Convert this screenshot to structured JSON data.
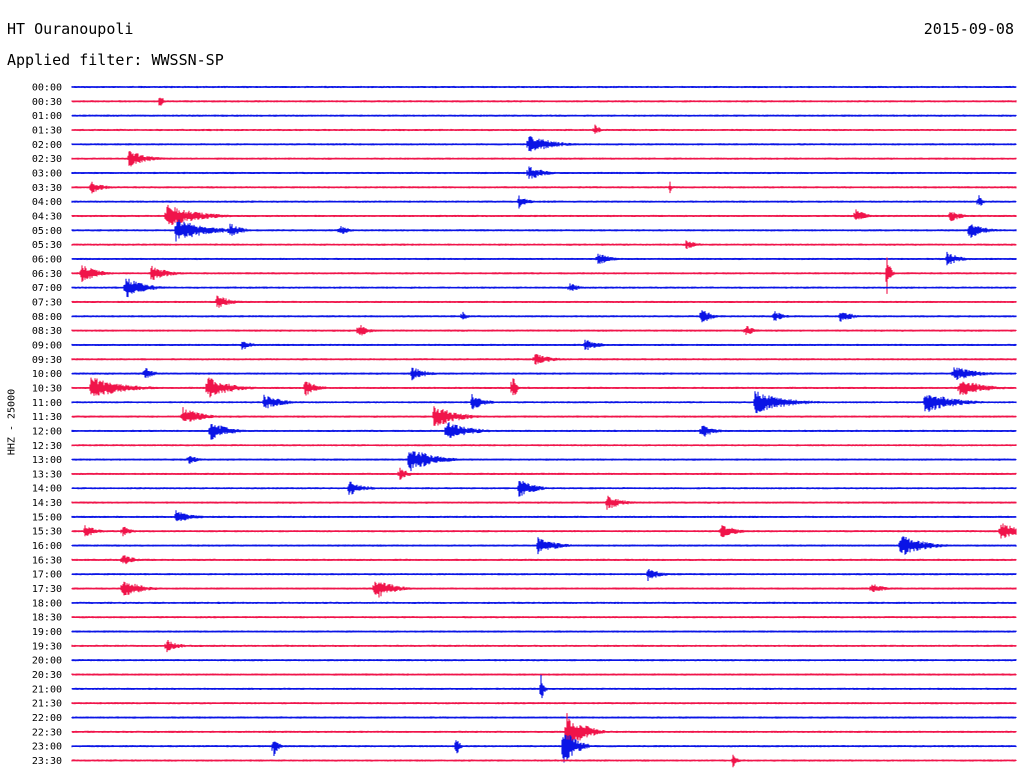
{
  "header": {
    "station": "HT Ouranoupoli",
    "date": "2015-09-08",
    "filter": "Applied filter: WWSSN-SP"
  },
  "colors": {
    "blue": "#0a14e6",
    "red": "#f0144a",
    "label": "#000000"
  },
  "chart_data": {
    "type": "line",
    "title": "HT Ouranoupoli",
    "subtitle": "Applied filter: WWSSN-SP",
    "ylabel": "HHZ - 25000",
    "y_categories": [
      "00:00",
      "00:30",
      "01:00",
      "01:30",
      "02:00",
      "02:30",
      "03:00",
      "03:30",
      "04:00",
      "04:30",
      "05:00",
      "05:30",
      "06:00",
      "06:30",
      "07:00",
      "07:30",
      "08:00",
      "08:30",
      "09:00",
      "09:30",
      "10:00",
      "10:30",
      "11:00",
      "11:30",
      "12:00",
      "12:30",
      "13:00",
      "13:30",
      "14:00",
      "14:30",
      "15:00",
      "15:30",
      "16:00",
      "16:30",
      "17:00",
      "17:30",
      "18:00",
      "18:30",
      "19:00",
      "19:30",
      "20:00",
      "20:30",
      "21:00",
      "21:30",
      "22:00",
      "22:30",
      "23:00",
      "23:30"
    ],
    "trace_colors": [
      "blue",
      "red"
    ],
    "x_range_minutes": [
      0,
      30
    ],
    "events": [
      {
        "row": 1,
        "t": 2.8,
        "a": 12,
        "d": 0.15
      },
      {
        "row": 3,
        "t": 16.6,
        "a": 8,
        "d": 0.3
      },
      {
        "row": 4,
        "t": 14.5,
        "a": 10,
        "d": 1.5
      },
      {
        "row": 5,
        "t": 1.8,
        "a": 9,
        "d": 1.2
      },
      {
        "row": 6,
        "t": 14.5,
        "a": 8,
        "d": 1.0
      },
      {
        "row": 7,
        "t": 0.6,
        "a": 7,
        "d": 0.8
      },
      {
        "row": 7,
        "t": 19.0,
        "a": 8,
        "d": 0.1
      },
      {
        "row": 8,
        "t": 14.2,
        "a": 7,
        "d": 0.6
      },
      {
        "row": 8,
        "t": 28.8,
        "a": 8,
        "d": 0.3
      },
      {
        "row": 9,
        "t": 3.0,
        "a": 12,
        "d": 2.0
      },
      {
        "row": 9,
        "t": 24.9,
        "a": 8,
        "d": 0.6
      },
      {
        "row": 9,
        "t": 27.9,
        "a": 6,
        "d": 0.8
      },
      {
        "row": 10,
        "t": 3.3,
        "a": 12,
        "d": 2.0
      },
      {
        "row": 10,
        "t": 5.0,
        "a": 8,
        "d": 0.8
      },
      {
        "row": 10,
        "t": 8.5,
        "a": 6,
        "d": 0.6
      },
      {
        "row": 10,
        "t": 28.5,
        "a": 9,
        "d": 1.0
      },
      {
        "row": 11,
        "t": 19.5,
        "a": 5,
        "d": 0.8
      },
      {
        "row": 12,
        "t": 16.7,
        "a": 7,
        "d": 0.8
      },
      {
        "row": 12,
        "t": 27.8,
        "a": 8,
        "d": 0.8
      },
      {
        "row": 13,
        "t": 0.3,
        "a": 10,
        "d": 1.0
      },
      {
        "row": 13,
        "t": 2.5,
        "a": 8,
        "d": 1.2
      },
      {
        "row": 13,
        "t": 25.9,
        "a": 22,
        "d": 0.2
      },
      {
        "row": 14,
        "t": 1.7,
        "a": 12,
        "d": 1.2
      },
      {
        "row": 14,
        "t": 15.8,
        "a": 6,
        "d": 0.6
      },
      {
        "row": 15,
        "t": 4.6,
        "a": 7,
        "d": 1.0
      },
      {
        "row": 16,
        "t": 12.4,
        "a": 6,
        "d": 0.3
      },
      {
        "row": 16,
        "t": 20.0,
        "a": 9,
        "d": 0.6
      },
      {
        "row": 16,
        "t": 22.3,
        "a": 7,
        "d": 0.6
      },
      {
        "row": 16,
        "t": 24.4,
        "a": 7,
        "d": 0.8
      },
      {
        "row": 17,
        "t": 9.1,
        "a": 8,
        "d": 0.6
      },
      {
        "row": 17,
        "t": 21.4,
        "a": 6,
        "d": 0.6
      },
      {
        "row": 18,
        "t": 5.4,
        "a": 6,
        "d": 0.6
      },
      {
        "row": 18,
        "t": 16.3,
        "a": 7,
        "d": 0.8
      },
      {
        "row": 19,
        "t": 14.7,
        "a": 6,
        "d": 1.2
      },
      {
        "row": 20,
        "t": 2.3,
        "a": 7,
        "d": 0.6
      },
      {
        "row": 20,
        "t": 10.8,
        "a": 7,
        "d": 1.0
      },
      {
        "row": 20,
        "t": 28.0,
        "a": 8,
        "d": 1.5
      },
      {
        "row": 21,
        "t": 0.6,
        "a": 12,
        "d": 2.0
      },
      {
        "row": 21,
        "t": 4.3,
        "a": 12,
        "d": 1.5
      },
      {
        "row": 21,
        "t": 7.4,
        "a": 9,
        "d": 0.8
      },
      {
        "row": 21,
        "t": 14.0,
        "a": 20,
        "d": 0.2
      },
      {
        "row": 21,
        "t": 28.2,
        "a": 10,
        "d": 1.5
      },
      {
        "row": 22,
        "t": 6.1,
        "a": 8,
        "d": 1.2
      },
      {
        "row": 22,
        "t": 12.7,
        "a": 9,
        "d": 0.8
      },
      {
        "row": 22,
        "t": 21.7,
        "a": 12,
        "d": 2.0
      },
      {
        "row": 22,
        "t": 27.1,
        "a": 12,
        "d": 1.8
      },
      {
        "row": 23,
        "t": 3.5,
        "a": 10,
        "d": 1.2
      },
      {
        "row": 23,
        "t": 11.5,
        "a": 12,
        "d": 1.5
      },
      {
        "row": 24,
        "t": 4.4,
        "a": 10,
        "d": 1.2
      },
      {
        "row": 24,
        "t": 11.9,
        "a": 10,
        "d": 1.5
      },
      {
        "row": 24,
        "t": 20.0,
        "a": 8,
        "d": 0.8
      },
      {
        "row": 26,
        "t": 10.7,
        "a": 14,
        "d": 1.5
      },
      {
        "row": 26,
        "t": 3.7,
        "a": 6,
        "d": 0.6
      },
      {
        "row": 27,
        "t": 10.4,
        "a": 7,
        "d": 0.6
      },
      {
        "row": 28,
        "t": 8.8,
        "a": 8,
        "d": 1.0
      },
      {
        "row": 28,
        "t": 14.2,
        "a": 10,
        "d": 1.0
      },
      {
        "row": 29,
        "t": 17.0,
        "a": 8,
        "d": 1.0
      },
      {
        "row": 30,
        "t": 3.3,
        "a": 8,
        "d": 1.0
      },
      {
        "row": 31,
        "t": 0.4,
        "a": 7,
        "d": 0.8
      },
      {
        "row": 31,
        "t": 1.6,
        "a": 6,
        "d": 0.6
      },
      {
        "row": 31,
        "t": 20.6,
        "a": 8,
        "d": 1.0
      },
      {
        "row": 31,
        "t": 29.5,
        "a": 10,
        "d": 1.2
      },
      {
        "row": 32,
        "t": 14.8,
        "a": 9,
        "d": 1.2
      },
      {
        "row": 32,
        "t": 26.3,
        "a": 12,
        "d": 1.5
      },
      {
        "row": 33,
        "t": 1.6,
        "a": 6,
        "d": 0.8
      },
      {
        "row": 34,
        "t": 18.3,
        "a": 7,
        "d": 0.8
      },
      {
        "row": 35,
        "t": 1.6,
        "a": 10,
        "d": 1.2
      },
      {
        "row": 35,
        "t": 9.6,
        "a": 12,
        "d": 1.2
      },
      {
        "row": 35,
        "t": 25.4,
        "a": 6,
        "d": 0.8
      },
      {
        "row": 39,
        "t": 3.0,
        "a": 7,
        "d": 0.8
      },
      {
        "row": 42,
        "t": 14.9,
        "a": 16,
        "d": 0.2
      },
      {
        "row": 45,
        "t": 15.7,
        "a": 20,
        "d": 1.2
      },
      {
        "row": 46,
        "t": 6.4,
        "a": 12,
        "d": 0.3
      },
      {
        "row": 46,
        "t": 12.2,
        "a": 14,
        "d": 0.2
      },
      {
        "row": 46,
        "t": 15.6,
        "a": 22,
        "d": 0.8
      },
      {
        "row": 47,
        "t": 21.0,
        "a": 8,
        "d": 0.3
      }
    ]
  }
}
